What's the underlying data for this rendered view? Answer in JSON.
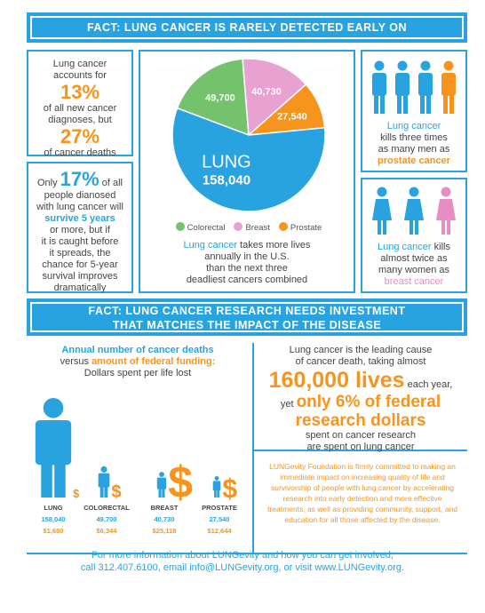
{
  "banner1": "FACT: LUNG CANCER IS RARELY DETECTED EARLY ON",
  "left1": {
    "l1": "Lung cancer",
    "l2": "accounts for",
    "pct1": "13%",
    "l3": "of all new cancer",
    "l4": "diagnoses, but",
    "pct2": "27%",
    "l5": "of cancer deaths"
  },
  "left2": {
    "pre": "Only",
    "pct": "17%",
    "post": "of all",
    "l2": "people dianosed",
    "l3": "with lung cancer will",
    "l4": "survive 5 years",
    "l5": "or more, but if",
    "l6": "it is caught before",
    "l7": "it spreads, the",
    "l8": "chance for 5-year",
    "l9": "survival improves",
    "l10": "dramatically"
  },
  "pie_caption": {
    "hl": "Lung cancer",
    "l1": " takes more lives",
    "l2": "annually in the U.S.",
    "l3": "than the next three",
    "l4": "deadliest cancers combined"
  },
  "right1": {
    "hl": "Lung cancer",
    "l2": "kills three times",
    "l3": "as many men as",
    "hl2": "prostate cancer"
  },
  "right2": {
    "hl": "Lung cancer",
    "post": " kills",
    "l2": "almost twice as",
    "l3": "many women as",
    "hl2": "breast cancer"
  },
  "banner2": {
    "l1": "FACT: LUNG CANCER RESEARCH NEEDS INVESTMENT",
    "l2": "THAT MATCHES THE IMPACT OF THE DISEASE"
  },
  "deaths_title": {
    "l1": "Annual number of cancer deaths",
    "l2pre": "versus ",
    "l2hl": "amount of federal funding:",
    "l3": "Dollars spent per life lost"
  },
  "research": {
    "l1": "Lung cancer is the leading cause",
    "l2": "of cancer death, taking almost",
    "big1": "160,000 lives",
    "each": " each year,",
    "yet": "yet ",
    "big2": "only 6% of federal",
    "big3": "research dollars",
    "l3": "spent on cancer research",
    "l4": "are spent on lung cancer"
  },
  "foundation": "LUNGevity Foundation is firmly committed to making an immediate impact on increasing quality of life and survivorship of people with lung cancer by accelerating research into early detection and more effective treatments, as well as providing community, support, and education for all those affected by the disease.",
  "footer": {
    "l1": "For more information about LUNGevity and how you can get involved,",
    "l2": "call 312.407.6100, email info@LUNGevity.org, or visit www.LUNGevity.org."
  },
  "colors": {
    "lung": "#29a3df",
    "colorectal": "#74c26b",
    "breast": "#e8a1d0",
    "prostate": "#f7941d"
  },
  "chart_data": [
    {
      "type": "pie",
      "categories": [
        "LUNG",
        "Colorectal",
        "Breast",
        "Prostate"
      ],
      "values": [
        158040,
        49700,
        40730,
        27540
      ],
      "labels": [
        "158,040",
        "49,700",
        "40,730",
        "27,540"
      ],
      "big_label": "LUNG",
      "legend": [
        "Colorectal",
        "Breast",
        "Prostate"
      ],
      "legend_position": "bottom"
    },
    {
      "type": "bar",
      "categories": [
        "LUNG",
        "COLORECTAL",
        "BREAST",
        "PROSTATE"
      ],
      "series": [
        {
          "values": [
            158040,
            49700,
            40730,
            27540
          ],
          "labels": [
            "158,040",
            "49,700",
            "40,730",
            "27,540"
          ]
        },
        {
          "values": [
            1680,
            6344,
            25118,
            12644
          ],
          "labels": [
            "$1,680",
            "$6,344",
            "$25,118",
            "$12,644"
          ]
        }
      ]
    }
  ]
}
